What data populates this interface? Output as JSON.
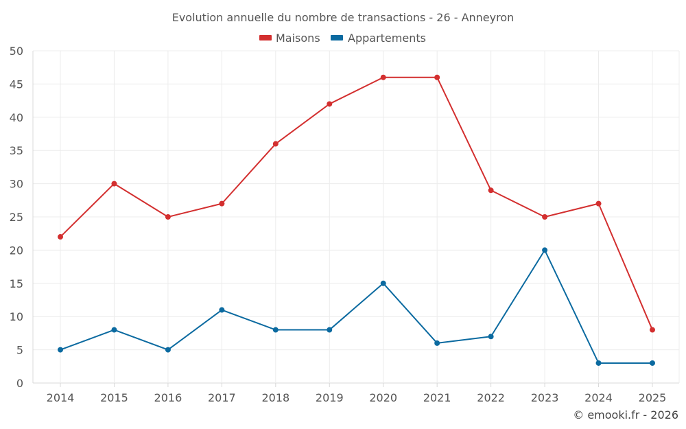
{
  "chart_data": {
    "type": "line",
    "title": "Evolution annuelle du nombre de transactions - 26 - Anneyron",
    "categories": [
      "2014",
      "2015",
      "2016",
      "2017",
      "2018",
      "2019",
      "2020",
      "2021",
      "2022",
      "2023",
      "2024",
      "2025"
    ],
    "series": [
      {
        "name": "Maisons",
        "color": "#d32f2f",
        "values": [
          22,
          30,
          25,
          27,
          36,
          42,
          46,
          46,
          29,
          25,
          27,
          8
        ]
      },
      {
        "name": "Appartements",
        "color": "#0b6aa0",
        "values": [
          5,
          8,
          5,
          11,
          8,
          8,
          15,
          6,
          7,
          20,
          3,
          3
        ]
      }
    ],
    "ylim": [
      0,
      50
    ],
    "yticks": [
      0,
      5,
      10,
      15,
      20,
      25,
      30,
      35,
      40,
      45,
      50
    ],
    "grid": true,
    "legend": "top-center",
    "xlabel": "",
    "ylabel": ""
  },
  "credit": "© emooki.fr - 2026",
  "colors": {
    "grid": "#ececec",
    "axis": "#d8d8d8",
    "text": "#555555"
  }
}
